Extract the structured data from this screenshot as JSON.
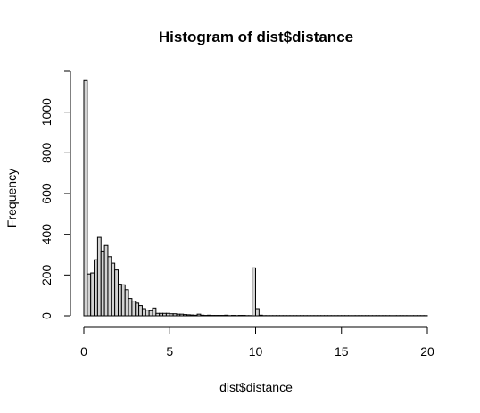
{
  "chart_data": {
    "type": "bar",
    "title": "Histogram of dist$distance",
    "xlabel": "dist$distance",
    "ylabel": "Frequency",
    "xlim": [
      0,
      20
    ],
    "ylim": [
      0,
      1200
    ],
    "bin_width": 0.2,
    "x_ticks": [
      "0",
      "5",
      "10",
      "15",
      "20"
    ],
    "y_ticks": [
      "0",
      "200",
      "400",
      "600",
      "800",
      "1000"
    ],
    "bins_start": 0,
    "values": [
      1155,
      205,
      210,
      275,
      385,
      318,
      345,
      290,
      258,
      225,
      155,
      152,
      128,
      85,
      72,
      62,
      50,
      35,
      28,
      25,
      38,
      12,
      12,
      12,
      12,
      10,
      10,
      8,
      8,
      6,
      5,
      4,
      3,
      8,
      3,
      2,
      3,
      2,
      2,
      2,
      2,
      3,
      1,
      2,
      1,
      2,
      2,
      1,
      1,
      235,
      35,
      3,
      1,
      1,
      1,
      1,
      1,
      1,
      1,
      1,
      1,
      1,
      1,
      1,
      1,
      1,
      1,
      1,
      1,
      1,
      1,
      1,
      1,
      1,
      1,
      1,
      1,
      1,
      1,
      1,
      1,
      1,
      1,
      1,
      1,
      1,
      1,
      1,
      1,
      1,
      1,
      1,
      1,
      1,
      1,
      1,
      1,
      1,
      1,
      1
    ]
  }
}
